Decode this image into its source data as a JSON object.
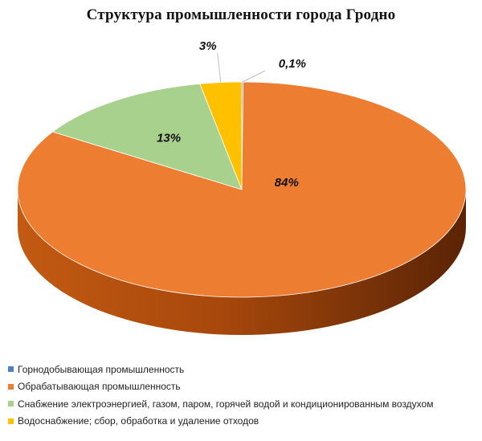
{
  "chart_data": {
    "type": "pie",
    "title": "Структура промышленности города Гродно",
    "categories": [
      "Горнодобывающая промышленность",
      "Обрабатывающая промышленность",
      "Снабжение электроэнергией, газом, паром, горячей водой и кондиционированным воздухом",
      "Водоснабжение; сбор, обработка и удаление отходов"
    ],
    "values": [
      0.1,
      84,
      13,
      3
    ],
    "data_labels": [
      "0,1%",
      "84%",
      "13%",
      "3%"
    ],
    "colors": [
      "#4f81bd",
      "#ed7d31",
      "#a9d18e",
      "#ffc000"
    ],
    "legend_position": "bottom",
    "style": "3d"
  }
}
